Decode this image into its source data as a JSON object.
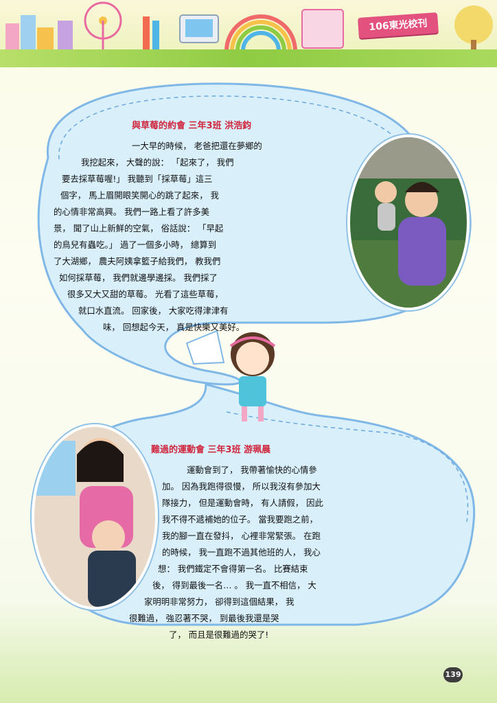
{
  "header": {
    "issue_label": "106東光校刊"
  },
  "page_number": "139",
  "story1": {
    "title": "與草莓的約會 三年3班 洪浩鈞",
    "lines": [
      "一大早的時候， 老爸把還在夢鄉的",
      "我挖起來， 大聲的說： 「起來了， 我們",
      "要去採草莓喔!」 我聽到「採草莓」這三",
      "個字， 馬上眉開眼笑開心的跳了起來， 我",
      "的心情非常高興。 我們一路上看了許多美",
      "景， 聞了山上新鮮的空氣， 俗話說： 「早起",
      "的鳥兒有蟲吃。」 過了一個多小時， 總算到",
      "了大湖鄉， 農夫阿姨拿籃子給我們， 教我們",
      "如何採草莓， 我們就邊學邊採。 我們採了",
      "很多又大又甜的草莓。 光看了這些草莓，",
      "就口水直流。 回家後， 大家吃得津津有",
      "味， 回想起今天， 真是快樂又美好。"
    ]
  },
  "story2": {
    "title": "難過的運動會 三年3班 游珮晨",
    "lines": [
      "運動會到了， 我帶著愉快的心情參",
      "加。 因為我跑得很慢， 所以我沒有參加大",
      "隊接力， 但是運動會時， 有人請假， 因此",
      "我不得不遞補她的位子。 當我要跑之前，",
      "我的腳一直在發抖， 心裡非常緊張。 在跑",
      "的時候， 我一直跑不過其他班的人， 我心",
      "想： 我們鐵定不會得第一名。 比賽結束",
      "後， 得到最後一名… 。 我一直不相信， 大",
      "家明明非常努力， 卻得到這個結果， 我",
      "很難過， 強忍著不哭， 到最後我還是哭",
      "了， 而且是很難過的哭了!"
    ]
  }
}
